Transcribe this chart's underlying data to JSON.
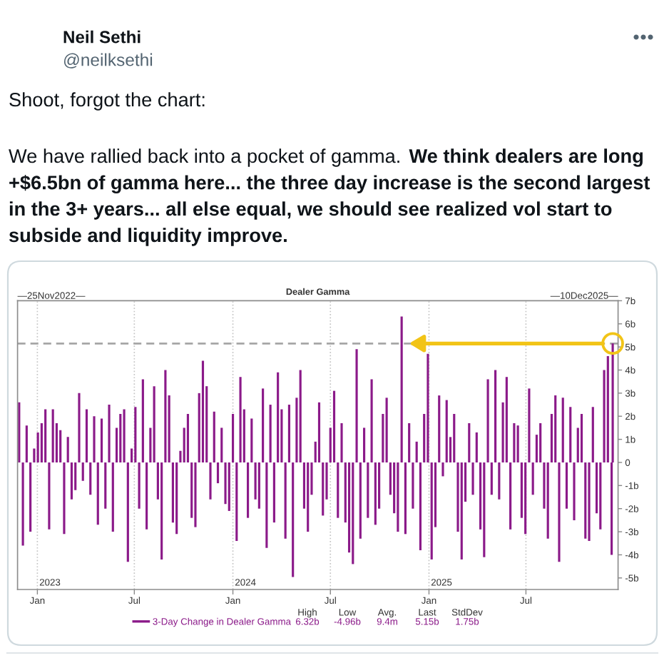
{
  "chart_data": {
    "type": "bar",
    "title": "Dealer Gamma",
    "x": [
      "2022-11-28",
      "2022-12-05",
      "2022-12-12",
      "2022-12-19",
      "2022-12-26",
      "2023-01-02",
      "2023-01-09",
      "2023-01-16",
      "2023-01-23",
      "2023-01-30",
      "2023-02-06",
      "2023-02-13",
      "2023-02-20",
      "2023-02-27",
      "2023-03-06",
      "2023-03-13",
      "2023-03-20",
      "2023-03-27",
      "2023-04-03",
      "2023-04-10",
      "2023-04-17",
      "2023-04-24",
      "2023-05-01",
      "2023-05-08",
      "2023-05-15",
      "2023-05-22",
      "2023-05-29",
      "2023-06-05",
      "2023-06-12",
      "2023-06-19",
      "2023-06-26",
      "2023-07-03",
      "2023-07-10",
      "2023-07-17",
      "2023-07-24",
      "2023-07-31",
      "2023-08-07",
      "2023-08-14",
      "2023-08-21",
      "2023-08-28",
      "2023-09-04",
      "2023-09-11",
      "2023-09-18",
      "2023-09-25",
      "2023-10-02",
      "2023-10-09",
      "2023-10-16",
      "2023-10-23",
      "2023-10-30",
      "2023-11-06",
      "2023-11-13",
      "2023-11-20",
      "2023-11-27",
      "2023-12-04",
      "2023-12-11",
      "2023-12-18",
      "2023-12-25",
      "2024-01-01",
      "2024-01-08",
      "2024-01-15",
      "2024-01-22",
      "2024-01-29",
      "2024-02-05",
      "2024-02-12",
      "2024-02-19",
      "2024-02-26",
      "2024-03-04",
      "2024-03-11",
      "2024-03-18",
      "2024-03-25",
      "2024-04-01",
      "2024-04-08",
      "2024-04-15",
      "2024-04-22",
      "2024-04-29",
      "2024-05-06",
      "2024-05-13",
      "2024-05-20",
      "2024-05-27",
      "2024-06-03",
      "2024-06-10",
      "2024-06-17",
      "2024-06-24",
      "2024-07-01",
      "2024-07-08",
      "2024-07-15",
      "2024-07-22",
      "2024-07-29",
      "2024-08-05",
      "2024-08-12",
      "2024-08-19",
      "2024-08-26",
      "2024-09-02",
      "2024-09-09",
      "2024-09-16",
      "2024-09-23",
      "2024-09-30",
      "2024-10-07",
      "2024-10-14",
      "2024-10-21",
      "2024-10-28",
      "2024-11-04",
      "2024-11-11",
      "2024-11-18",
      "2024-11-25",
      "2024-12-02",
      "2024-12-09",
      "2024-12-16",
      "2024-12-23",
      "2024-12-30",
      "2025-01-06",
      "2025-01-13",
      "2025-01-20",
      "2025-01-27",
      "2025-02-03",
      "2025-02-10",
      "2025-02-17",
      "2025-02-24",
      "2025-03-03",
      "2025-03-10",
      "2025-03-17",
      "2025-03-24",
      "2025-03-31",
      "2025-04-07",
      "2025-04-14",
      "2025-04-21",
      "2025-04-28",
      "2025-05-05",
      "2025-05-12",
      "2025-05-19",
      "2025-05-26",
      "2025-06-02",
      "2025-06-09",
      "2025-06-16",
      "2025-06-23",
      "2025-06-30",
      "2025-07-07",
      "2025-07-14",
      "2025-07-21",
      "2025-07-28",
      "2025-08-04",
      "2025-08-11",
      "2025-08-18",
      "2025-08-25",
      "2025-09-01",
      "2025-09-08",
      "2025-09-15",
      "2025-09-22",
      "2025-09-29",
      "2025-10-06",
      "2025-10-13",
      "2025-10-20",
      "2025-10-27",
      "2025-11-03",
      "2025-11-10",
      "2025-11-17",
      "2025-11-24",
      "2025-12-01",
      "2025-12-08",
      "2025-12-10"
    ],
    "series": [
      {
        "name": "3-Day Change in Dealer Gamma",
        "color": "#8b1a89",
        "values": [
          2.6,
          -3.6,
          1.6,
          -3.0,
          0.6,
          1.3,
          1.7,
          2.3,
          -2.9,
          2.3,
          1.7,
          1.4,
          -3.1,
          1.1,
          -1.6,
          -1.2,
          3.0,
          -0.8,
          2.3,
          -1.4,
          2.0,
          -2.7,
          1.9,
          -2.0,
          2.5,
          -3.0,
          1.5,
          2.1,
          2.3,
          -4.3,
          0.6,
          2.4,
          -2.0,
          3.6,
          -2.9,
          1.5,
          3.3,
          -1.6,
          -4.2,
          4.0,
          2.9,
          -2.6,
          -3.1,
          0.5,
          1.5,
          2.1,
          -2.4,
          -2.8,
          3.0,
          4.4,
          3.3,
          -1.6,
          2.2,
          -0.9,
          1.5,
          -1.8,
          -2.1,
          2.1,
          -3.4,
          3.7,
          2.3,
          -2.4,
          1.9,
          -1.6,
          -2.0,
          3.2,
          -3.7,
          2.5,
          -2.6,
          3.9,
          2.3,
          -3.3,
          2.5,
          -4.96,
          2.8,
          4.0,
          -2.0,
          -3.0,
          -1.4,
          0.9,
          2.6,
          -2.3,
          -1.6,
          1.5,
          3.1,
          -2.4,
          1.7,
          -2.6,
          -3.9,
          -4.4,
          4.9,
          -3.3,
          1.5,
          -2.4,
          3.6,
          -2.7,
          -2.0,
          2.1,
          2.8,
          -1.4,
          -2.2,
          -3.0,
          6.32,
          -3.1,
          1.7,
          -2.0,
          0.9,
          -3.8,
          2.1,
          4.7,
          -4.2,
          -2.8,
          2.9,
          -0.6,
          2.7,
          1.1,
          2.1,
          -3.0,
          -4.2,
          -1.7,
          1.7,
          -1.4,
          1.3,
          -2.9,
          -4.1,
          3.6,
          -1.4,
          4.0,
          -1.6,
          2.6,
          3.7,
          -2.9,
          1.7,
          1.6,
          -2.4,
          -3.1,
          3.2,
          -1.4,
          1.2,
          1.7,
          -2.0,
          -3.3,
          2.1,
          2.9,
          -4.3,
          2.8,
          -2.0,
          2.4,
          -2.5,
          1.5,
          2.1,
          -3.3,
          -3.4,
          2.4,
          -2.2,
          -2.9,
          4.0,
          4.6,
          -4.0,
          5.15
        ]
      }
    ],
    "xlim": [
      "2022-11-25",
      "2025-12-20"
    ],
    "xticks": [
      {
        "value": "2023-01-01",
        "label": "Jan"
      },
      {
        "value": "2023-07-01",
        "label": "Jul"
      },
      {
        "value": "2024-01-01",
        "label": "Jan"
      },
      {
        "value": "2024-07-01",
        "label": "Jul"
      },
      {
        "value": "2025-01-01",
        "label": "Jan"
      },
      {
        "value": "2025-07-01",
        "label": "Jul"
      }
    ],
    "ylim": [
      -5.5,
      7
    ],
    "yticks": [
      {
        "value": 7,
        "label": "7b"
      },
      {
        "value": 6,
        "label": "6b"
      },
      {
        "value": 5,
        "label": "5b"
      },
      {
        "value": 4,
        "label": "4b"
      },
      {
        "value": 3,
        "label": "3b"
      },
      {
        "value": 2,
        "label": "2b"
      },
      {
        "value": 1,
        "label": "1b"
      },
      0,
      {
        "value": -1,
        "label": "-1b"
      },
      {
        "value": -2,
        "label": "-2b"
      },
      {
        "value": -3,
        "label": "-3b"
      },
      {
        "value": -4,
        "label": "-4b"
      },
      {
        "value": -5,
        "label": "-5b"
      }
    ],
    "grid": "x",
    "legend": "bottom",
    "ref_lines": [
      {
        "axis": "y",
        "value": 5.15,
        "color": "#a6a6a6",
        "line_style": "dashed"
      }
    ],
    "annotations": [
      "Neil Sethi",
      "@neilksethi",
      "Shoot, forgot the chart:",
      "We have rallied back into a pocket of gamma. We think dealers are long +$6.5bn of gamma here... the three day increase is the second largest in the 3+ years... all else equal, we should see realized vol start to subside and liquidity improve.",
      "—25Nov2022—",
      "—10Dec2025—",
      "2023",
      "2024",
      "2025",
      "High",
      "6.32b",
      "Low",
      "-4.96b",
      "Avg.",
      "9.4m",
      "Last",
      "5.15b",
      "StdDev",
      "1.75b"
    ]
  }
}
